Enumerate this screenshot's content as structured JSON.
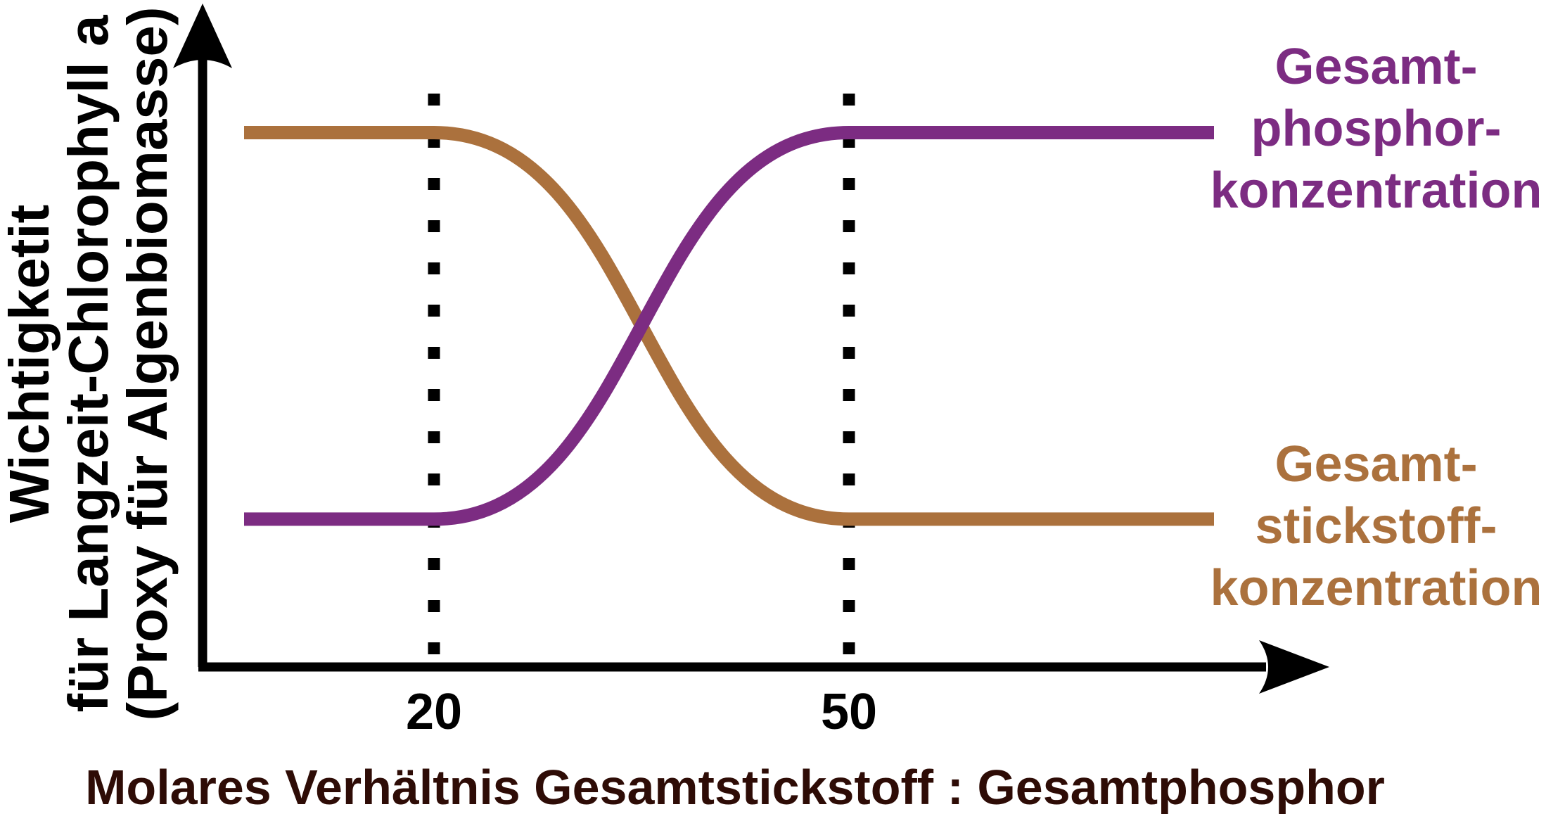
{
  "chart_data": {
    "type": "line",
    "title": "",
    "xlabel": "Molares Verhältnis Gesamtstickstoff : Gesamtphosphor",
    "ylabel_lines": [
      "Wichtigketit",
      "für Langzeit-Chlorophyll a",
      "(Proxy für Algenbiomasse)"
    ],
    "x_ticks": [
      {
        "value": 20,
        "label": "20"
      },
      {
        "value": 50,
        "label": "50"
      }
    ],
    "x_axis_range_drawn": [
      6,
      76
    ],
    "ylim": [
      0,
      1
    ],
    "y_axis_note": "qualitative importance axis, no numeric ticks, arrow pointing up",
    "grid": "off; dotted vertical reference lines at x = 20 and x = 50",
    "legend_position": "right of plot, stacked colored labels",
    "series": [
      {
        "name": "Gesamtphosphorkonzentration",
        "label_lines": [
          "Gesamt-",
          "phosphor-",
          "konzentration"
        ],
        "color": "#7C2C82",
        "trend": "rising",
        "low_value": 0.26,
        "high_value": 0.94,
        "transition_x": [
          20,
          50
        ],
        "points": [
          {
            "x": 6,
            "y": 0.26
          },
          {
            "x": 20,
            "y": 0.26
          },
          {
            "x": 27,
            "y": 0.37
          },
          {
            "x": 35,
            "y": 0.6
          },
          {
            "x": 43,
            "y": 0.83
          },
          {
            "x": 50,
            "y": 0.94
          },
          {
            "x": 76,
            "y": 0.94
          }
        ]
      },
      {
        "name": "Gesamtstickstoffkonzentration",
        "label_lines": [
          "Gesamt-",
          "stickstoff-",
          "konzentration"
        ],
        "color": "#AB713D",
        "trend": "falling",
        "low_value": 0.26,
        "high_value": 0.94,
        "transition_x": [
          20,
          50
        ],
        "points": [
          {
            "x": 6,
            "y": 0.94
          },
          {
            "x": 20,
            "y": 0.94
          },
          {
            "x": 27,
            "y": 0.83
          },
          {
            "x": 35,
            "y": 0.6
          },
          {
            "x": 43,
            "y": 0.37
          },
          {
            "x": 50,
            "y": 0.26
          },
          {
            "x": 76,
            "y": 0.26
          }
        ]
      }
    ],
    "colors": {
      "axis": "#000000",
      "reference_dots": "#000000",
      "tick_text": "#000000",
      "xlabel_text": "#2E0C06",
      "ylabel_text": "#000000",
      "background": "#FFFFFF"
    }
  }
}
